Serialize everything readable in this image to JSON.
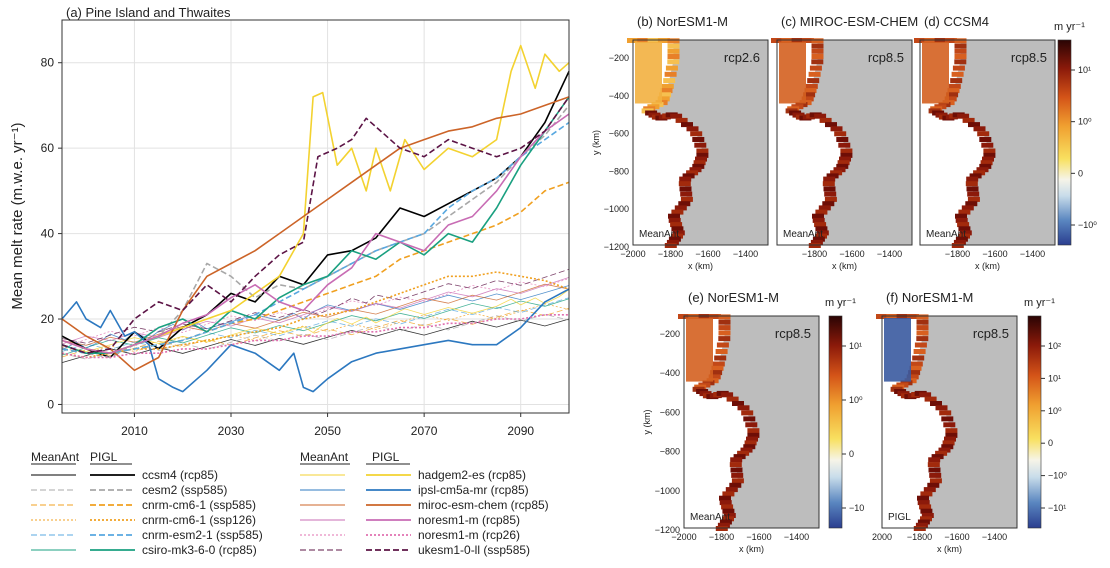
{
  "chart_data": [
    {
      "type": "line",
      "panel": "(a) Pine Island and Thwaites",
      "title": "(a) Pine Island and Thwaites",
      "ylabel": "Mean melt rate (m.w.e. yr⁻¹)",
      "xlabel": "",
      "xlim": [
        1995,
        2100
      ],
      "ylim": [
        -2,
        90
      ],
      "xticks": [
        "2010",
        "2030",
        "2050",
        "2070",
        "2090"
      ],
      "yticks": [
        "0",
        "20",
        "40",
        "60",
        "80"
      ],
      "grid": true,
      "legend_headers": [
        "MeanAnt",
        "PIGL",
        "MeanAnt",
        "PIGL"
      ],
      "series": [
        {
          "name": "ccsm4 (rcp85)",
          "color": "#000000",
          "dash": "solid",
          "x": [
            1995,
            2000,
            2005,
            2010,
            2015,
            2020,
            2025,
            2030,
            2035,
            2040,
            2045,
            2050,
            2055,
            2060,
            2065,
            2070,
            2075,
            2080,
            2085,
            2090,
            2095,
            2100
          ],
          "y": [
            16,
            13,
            11,
            17,
            13,
            18,
            21,
            26,
            24,
            30,
            28,
            35,
            36,
            39,
            46,
            44,
            47,
            50,
            53,
            58,
            66,
            78
          ]
        },
        {
          "name": "cesm2 (ssp585)",
          "color": "#a8a8a8",
          "dash": "dashed",
          "x": [
            1995,
            2000,
            2005,
            2010,
            2015,
            2020,
            2025,
            2030,
            2035,
            2040,
            2045,
            2050,
            2055,
            2060,
            2065,
            2070,
            2075,
            2080,
            2085,
            2090,
            2095,
            2100
          ],
          "y": [
            14,
            12,
            11,
            14,
            16,
            22,
            33,
            30,
            25,
            28,
            27,
            30,
            33,
            36,
            38,
            40,
            44,
            48,
            52,
            58,
            63,
            70
          ]
        },
        {
          "name": "cnrm-cm6-1 (ssp585)",
          "color": "#f0a020",
          "dash": "dashed",
          "x": [
            1995,
            2000,
            2005,
            2010,
            2015,
            2020,
            2025,
            2030,
            2035,
            2040,
            2045,
            2050,
            2055,
            2060,
            2065,
            2070,
            2075,
            2080,
            2085,
            2090,
            2095,
            2100
          ],
          "y": [
            13,
            12,
            12,
            13,
            14,
            15,
            17,
            19,
            20,
            22,
            24,
            26,
            28,
            30,
            34,
            36,
            38,
            40,
            42,
            45,
            50,
            52
          ]
        },
        {
          "name": "cnrm-cm6-1 (ssp126)",
          "color": "#f0a020",
          "dash": "dotted",
          "x": [
            1995,
            2000,
            2005,
            2010,
            2015,
            2020,
            2025,
            2030,
            2035,
            2040,
            2045,
            2050,
            2055,
            2060,
            2065,
            2070,
            2075,
            2080,
            2085,
            2090,
            2095,
            2100
          ],
          "y": [
            12,
            11,
            12,
            13,
            13,
            14,
            15,
            16,
            17,
            18,
            20,
            21,
            22,
            24,
            26,
            28,
            30,
            30,
            31,
            30,
            29,
            27
          ]
        },
        {
          "name": "cnrm-esm2-1 (ssp585)",
          "color": "#58a8e0",
          "dash": "dashed",
          "x": [
            1995,
            2000,
            2005,
            2010,
            2015,
            2020,
            2025,
            2030,
            2035,
            2040,
            2045,
            2050,
            2055,
            2060,
            2065,
            2070,
            2075,
            2080,
            2085,
            2090,
            2095,
            2100
          ],
          "y": [
            13,
            12,
            12,
            13,
            14,
            15,
            17,
            19,
            21,
            24,
            27,
            30,
            33,
            36,
            38,
            40,
            46,
            50,
            53,
            58,
            62,
            66
          ]
        },
        {
          "name": "csiro-mk3-6-0 (rcp85)",
          "color": "#1aa080",
          "dash": "solid",
          "x": [
            1995,
            2000,
            2005,
            2010,
            2015,
            2020,
            2025,
            2030,
            2035,
            2040,
            2045,
            2050,
            2055,
            2060,
            2065,
            2070,
            2075,
            2080,
            2085,
            2090,
            2095,
            2100
          ],
          "y": [
            14,
            12,
            12,
            14,
            18,
            20,
            17,
            22,
            20,
            25,
            28,
            30,
            36,
            34,
            38,
            35,
            40,
            38,
            46,
            56,
            64,
            72
          ]
        },
        {
          "name": "hadgem2-es (rcp85)",
          "color": "#f3d230",
          "dash": "solid",
          "x": [
            1995,
            2000,
            2005,
            2010,
            2015,
            2020,
            2025,
            2030,
            2035,
            2040,
            2045,
            2047,
            2049,
            2052,
            2055,
            2058,
            2060,
            2063,
            2066,
            2070,
            2075,
            2080,
            2085,
            2088,
            2090,
            2093,
            2095,
            2098,
            2100
          ],
          "y": [
            15,
            13,
            12,
            14,
            16,
            18,
            20,
            22,
            26,
            30,
            40,
            72,
            73,
            56,
            60,
            50,
            60,
            50,
            62,
            55,
            60,
            58,
            62,
            78,
            84,
            74,
            82,
            78,
            80
          ]
        },
        {
          "name": "ipsl-cm5a-mr (rcp85)",
          "color": "#2c78c0",
          "dash": "solid",
          "x": [
            1995,
            1998,
            2000,
            2003,
            2005,
            2008,
            2010,
            2013,
            2015,
            2018,
            2020,
            2023,
            2025,
            2030,
            2035,
            2040,
            2043,
            2045,
            2047,
            2050,
            2055,
            2060,
            2065,
            2070,
            2075,
            2080,
            2085,
            2090,
            2095,
            2100
          ],
          "y": [
            20,
            24,
            20,
            18,
            22,
            16,
            17,
            14,
            6,
            4,
            3,
            6,
            8,
            14,
            12,
            8,
            12,
            4,
            3,
            6,
            10,
            12,
            13,
            14,
            15,
            14,
            14,
            18,
            24,
            27
          ]
        },
        {
          "name": "miroc-esm-chem (rcp85)",
          "color": "#cc6428",
          "dash": "solid",
          "x": [
            1995,
            2000,
            2005,
            2010,
            2015,
            2020,
            2025,
            2030,
            2035,
            2040,
            2045,
            2050,
            2055,
            2060,
            2065,
            2070,
            2075,
            2080,
            2085,
            2090,
            2095,
            2100
          ],
          "y": [
            20,
            16,
            13,
            8,
            11,
            22,
            30,
            33,
            36,
            40,
            44,
            48,
            52,
            56,
            60,
            62,
            64,
            65,
            67,
            68,
            70,
            72
          ]
        },
        {
          "name": "noresm1-m (rcp85)",
          "color": "#c86cb4",
          "dash": "solid",
          "x": [
            1995,
            2000,
            2005,
            2010,
            2015,
            2020,
            2025,
            2030,
            2035,
            2040,
            2045,
            2050,
            2055,
            2060,
            2065,
            2070,
            2075,
            2080,
            2085,
            2090,
            2095,
            2100
          ],
          "y": [
            15,
            13,
            12,
            14,
            16,
            19,
            21,
            25,
            28,
            24,
            22,
            28,
            32,
            40,
            38,
            36,
            42,
            44,
            50,
            58,
            64,
            68
          ]
        },
        {
          "name": "noresm1-m (rcp26)",
          "color": "#e070b0",
          "dash": "dotted",
          "x": [
            1995,
            2000,
            2005,
            2010,
            2015,
            2020,
            2025,
            2030,
            2035,
            2040,
            2045,
            2050,
            2055,
            2060,
            2065,
            2070,
            2075,
            2080,
            2085,
            2090,
            2095,
            2100
          ],
          "y": [
            12,
            11,
            11,
            12,
            12,
            13,
            13,
            14,
            15,
            15,
            16,
            16,
            17,
            17,
            18,
            18,
            19,
            19,
            20,
            20,
            21,
            21
          ]
        },
        {
          "name": "ukesm1-0-ll (ssp585)",
          "color": "#5c1446",
          "dash": "dashed",
          "x": [
            1995,
            2000,
            2005,
            2010,
            2015,
            2020,
            2025,
            2030,
            2035,
            2040,
            2045,
            2048,
            2052,
            2055,
            2058,
            2060,
            2065,
            2070,
            2075,
            2080,
            2085,
            2090,
            2095,
            2100
          ],
          "y": [
            14,
            12,
            13,
            20,
            24,
            22,
            28,
            24,
            30,
            35,
            38,
            58,
            60,
            62,
            67,
            65,
            60,
            58,
            62,
            60,
            58,
            60,
            64,
            72
          ]
        }
      ]
    },
    {
      "type": "heatmap",
      "panel": "(b) NorESM1-M",
      "title": "(b) NorESM1-M",
      "scenario": "rcp2.6",
      "metric": "MeanAnt",
      "xlabel": "x (km)",
      "ylabel": "y (km)",
      "xlim": [
        -2000,
        -1300
      ],
      "ylim": [
        -1200,
        -100
      ],
      "xticks": [
        "−2000",
        "−1800",
        "−1600",
        "−1400"
      ],
      "yticks": [
        "−200",
        "−400",
        "−600",
        "−800",
        "−1000",
        "−1200"
      ]
    },
    {
      "type": "heatmap",
      "panel": "(c) MIROC-ESM-CHEM",
      "title": "(c) MIROC-ESM-CHEM",
      "scenario": "rcp8.5",
      "metric": "MeanAnt",
      "xlabel": "x (km)",
      "xticks": [
        "−1800",
        "−1600",
        "−1400"
      ]
    },
    {
      "type": "heatmap",
      "panel": "(d) CCSM4",
      "title": "(d) CCSM4",
      "scenario": "rcp8.5",
      "metric": "MeanAnt",
      "xlabel": "x (km)",
      "xticks": [
        "−1800",
        "−1600",
        "−1400"
      ],
      "colorbar": {
        "label": "m yr⁻¹",
        "ticks": [
          "10¹",
          "10⁰",
          "0",
          "−10⁰"
        ]
      }
    },
    {
      "type": "heatmap",
      "panel": "(e) NorESM1-M",
      "title": "(e) NorESM1-M",
      "scenario": "rcp8.5",
      "metric": "MeanAnt",
      "xlabel": "x (km)",
      "ylabel": "y (km)",
      "xticks": [
        "−2000",
        "−1800",
        "−1600",
        "−1400"
      ],
      "yticks": [
        "−200",
        "−400",
        "−600",
        "−800",
        "−1000",
        "−1200"
      ],
      "colorbar": {
        "label": "m yr⁻¹",
        "ticks": [
          "10¹",
          "10⁰",
          "0",
          "−10"
        ]
      }
    },
    {
      "type": "heatmap",
      "panel": "(f) NorESM1-M",
      "title": "(f) NorESM1-M",
      "scenario": "rcp8.5",
      "metric": "PIGL",
      "xlabel": "x (km)",
      "xticks": [
        "2000",
        "−1800",
        "−1600",
        "−1400"
      ],
      "colorbar": {
        "label": "m yr⁻¹",
        "ticks": [
          "10²",
          "10¹",
          "10⁰",
          "0",
          "−10⁰",
          "−10¹"
        ]
      }
    }
  ]
}
